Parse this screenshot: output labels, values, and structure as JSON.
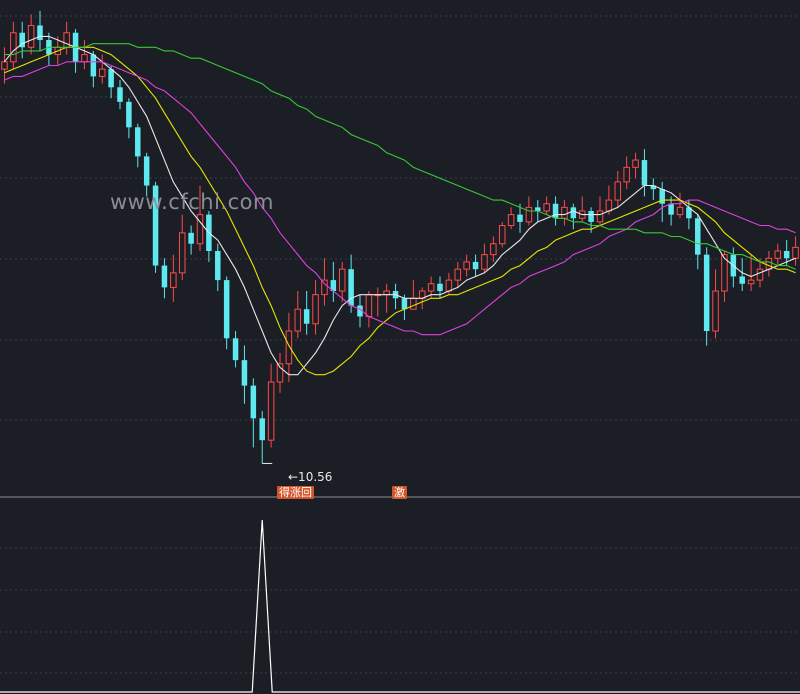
{
  "watermark": "www.cfchi.com",
  "annotations": {
    "low_label": "←10.56",
    "signal_a": "得涨回",
    "signal_b": "激"
  },
  "colors": {
    "background": "#1b1e25",
    "grid": "#3a3d47",
    "up": "#ff4a4a",
    "down": "#5ee8ef",
    "ma_white": "#e8e8e8",
    "ma_yellow": "#e6e600",
    "ma_magenta": "#e040e0",
    "ma_green": "#37c837",
    "indicator": "#ffffff",
    "signal_bg": "#d4542a"
  },
  "chart_data": [
    {
      "type": "candlestick",
      "title": "",
      "xlabel": "",
      "ylabel": "",
      "grid": true,
      "annotations": [
        {
          "text": "←10.56",
          "value": 10.56
        }
      ],
      "candles": [
        [
          21.4,
          21.6,
          22.0,
          21.0
        ],
        [
          21.6,
          22.4,
          22.7,
          21.4
        ],
        [
          22.4,
          22.0,
          22.7,
          21.7
        ],
        [
          22.0,
          22.6,
          22.9,
          21.8
        ],
        [
          22.6,
          22.2,
          23.0,
          21.9
        ],
        [
          22.2,
          21.8,
          22.4,
          21.5
        ],
        [
          21.8,
          22.0,
          22.3,
          21.5
        ],
        [
          22.0,
          22.4,
          22.7,
          21.8
        ],
        [
          22.4,
          21.6,
          22.5,
          21.3
        ],
        [
          21.6,
          21.8,
          22.2,
          21.4
        ],
        [
          21.8,
          21.2,
          21.9,
          20.9
        ],
        [
          21.2,
          21.4,
          21.8,
          21.0
        ],
        [
          21.4,
          20.9,
          21.5,
          20.6
        ],
        [
          20.9,
          20.5,
          21.1,
          20.3
        ],
        [
          20.5,
          19.8,
          20.6,
          19.5
        ],
        [
          19.8,
          19.0,
          19.9,
          18.7
        ],
        [
          19.0,
          18.2,
          19.1,
          17.9
        ],
        [
          18.2,
          16.0,
          18.3,
          15.8
        ],
        [
          16.0,
          15.4,
          16.2,
          15.1
        ],
        [
          15.4,
          15.8,
          16.3,
          15.0
        ],
        [
          15.8,
          16.9,
          17.4,
          15.6
        ],
        [
          16.9,
          16.6,
          17.1,
          16.3
        ],
        [
          16.6,
          17.4,
          18.2,
          16.4
        ],
        [
          17.4,
          16.4,
          17.5,
          16.1
        ],
        [
          16.4,
          15.6,
          16.6,
          15.3
        ],
        [
          15.6,
          14.0,
          15.7,
          13.7
        ],
        [
          14.0,
          13.4,
          14.2,
          13.2
        ],
        [
          13.4,
          12.7,
          13.8,
          12.2
        ],
        [
          12.7,
          11.8,
          12.9,
          11.0
        ],
        [
          11.8,
          11.2,
          12.0,
          10.56
        ],
        [
          11.2,
          12.8,
          13.3,
          11.0
        ],
        [
          12.8,
          13.3,
          13.6,
          12.5
        ],
        [
          13.3,
          14.2,
          14.7,
          12.8
        ],
        [
          14.2,
          14.8,
          15.3,
          14.0
        ],
        [
          14.8,
          14.4,
          15.3,
          14.1
        ],
        [
          14.4,
          15.2,
          15.6,
          14.1
        ],
        [
          15.2,
          15.6,
          16.2,
          14.9
        ],
        [
          15.6,
          15.3,
          16.1,
          15.0
        ],
        [
          15.3,
          15.9,
          16.1,
          15.0
        ],
        [
          15.9,
          14.9,
          16.3,
          14.7
        ],
        [
          14.9,
          14.6,
          15.2,
          14.3
        ],
        [
          14.6,
          15.2,
          15.3,
          14.3
        ],
        [
          15.2,
          15.2,
          15.4,
          14.6
        ],
        [
          15.2,
          15.3,
          15.5,
          14.7
        ],
        [
          15.3,
          15.1,
          15.5,
          14.8
        ],
        [
          15.1,
          14.8,
          15.2,
          14.5
        ],
        [
          14.8,
          15.1,
          15.6,
          14.8
        ],
        [
          15.1,
          15.3,
          15.4,
          14.8
        ],
        [
          15.3,
          15.5,
          15.7,
          15.1
        ],
        [
          15.5,
          15.3,
          15.7,
          15.1
        ],
        [
          15.3,
          15.6,
          15.8,
          15.2
        ],
        [
          15.6,
          15.9,
          16.1,
          15.4
        ],
        [
          15.9,
          16.1,
          16.3,
          15.7
        ],
        [
          16.1,
          15.9,
          16.3,
          15.7
        ],
        [
          15.9,
          16.3,
          16.6,
          15.8
        ],
        [
          16.3,
          16.6,
          16.8,
          16.1
        ],
        [
          16.6,
          17.1,
          17.2,
          16.5
        ],
        [
          17.1,
          17.4,
          17.6,
          17.0
        ],
        [
          17.4,
          17.2,
          17.7,
          16.9
        ],
        [
          17.2,
          17.6,
          17.9,
          17.1
        ],
        [
          17.6,
          17.5,
          17.8,
          17.2
        ],
        [
          17.5,
          17.7,
          17.9,
          17.4
        ],
        [
          17.7,
          17.3,
          17.9,
          17.1
        ],
        [
          17.3,
          17.6,
          17.8,
          17.1
        ],
        [
          17.6,
          17.3,
          17.7,
          17.0
        ],
        [
          17.3,
          17.5,
          17.9,
          17.2
        ],
        [
          17.5,
          17.2,
          17.6,
          16.9
        ],
        [
          17.2,
          17.5,
          17.9,
          17.1
        ],
        [
          17.5,
          17.8,
          18.2,
          17.4
        ],
        [
          17.8,
          18.3,
          18.6,
          17.6
        ],
        [
          18.3,
          18.7,
          19.0,
          18.1
        ],
        [
          18.7,
          18.9,
          19.1,
          18.4
        ],
        [
          18.9,
          18.2,
          19.2,
          17.9
        ],
        [
          18.2,
          18.1,
          18.4,
          17.8
        ],
        [
          18.1,
          17.7,
          18.3,
          17.2
        ],
        [
          17.7,
          17.4,
          17.9,
          17.1
        ],
        [
          17.4,
          17.6,
          18.0,
          17.3
        ],
        [
          17.6,
          17.3,
          17.8,
          17.0
        ],
        [
          17.3,
          16.3,
          17.4,
          15.9
        ],
        [
          16.3,
          14.2,
          16.5,
          13.8
        ],
        [
          14.2,
          15.3,
          15.9,
          14.0
        ],
        [
          15.3,
          16.3,
          16.4,
          15.0
        ],
        [
          16.3,
          15.7,
          16.5,
          15.4
        ],
        [
          15.7,
          15.5,
          16.2,
          15.3
        ],
        [
          15.5,
          15.6,
          16.3,
          15.3
        ],
        [
          15.6,
          15.9,
          16.2,
          15.4
        ],
        [
          15.9,
          16.2,
          16.4,
          15.7
        ],
        [
          16.2,
          16.4,
          16.6,
          16.0
        ],
        [
          16.4,
          16.2,
          16.7,
          16.0
        ],
        [
          16.2,
          16.5,
          16.8,
          16.0
        ]
      ],
      "moving_averages": [
        {
          "color": "#e8e8e8",
          "values": [
            21.6,
            21.9,
            22.1,
            22.2,
            22.3,
            22.3,
            22.2,
            22.1,
            22.0,
            21.9,
            21.8,
            21.6,
            21.4,
            21.2,
            20.9,
            20.5,
            20.1,
            19.5,
            18.9,
            18.3,
            17.9,
            17.5,
            17.2,
            16.9,
            16.7,
            16.3,
            15.9,
            15.4,
            14.8,
            14.2,
            13.6,
            13.2,
            13.0,
            13.0,
            13.3,
            13.6,
            14.0,
            14.5,
            14.9,
            15.1,
            15.2,
            15.2,
            15.2,
            15.2,
            15.2,
            15.1,
            15.1,
            15.1,
            15.2,
            15.2,
            15.3,
            15.4,
            15.6,
            15.7,
            15.8,
            16.0,
            16.3,
            16.5,
            16.7,
            17.0,
            17.2,
            17.3,
            17.4,
            17.4,
            17.5,
            17.4,
            17.4,
            17.4,
            17.5,
            17.6,
            17.8,
            18.0,
            18.2,
            18.2,
            18.1,
            18.0,
            17.8,
            17.6,
            17.4,
            17.0,
            16.6,
            16.2,
            16.0,
            15.8,
            15.7,
            15.8,
            15.9,
            16.0,
            16.1,
            16.2
          ]
        },
        {
          "color": "#e6e600",
          "values": [
            21.3,
            21.4,
            21.5,
            21.6,
            21.7,
            21.8,
            21.9,
            22.0,
            22.0,
            22.0,
            22.0,
            21.9,
            21.8,
            21.6,
            21.4,
            21.2,
            20.9,
            20.6,
            20.2,
            19.8,
            19.4,
            19.0,
            18.7,
            18.3,
            17.9,
            17.5,
            17.0,
            16.5,
            16.0,
            15.4,
            14.9,
            14.3,
            13.8,
            13.4,
            13.1,
            13.0,
            13.0,
            13.1,
            13.3,
            13.5,
            13.8,
            14.0,
            14.3,
            14.5,
            14.7,
            14.8,
            14.9,
            15.0,
            15.1,
            15.1,
            15.2,
            15.2,
            15.3,
            15.4,
            15.5,
            15.6,
            15.7,
            15.9,
            16.0,
            16.2,
            16.4,
            16.5,
            16.7,
            16.8,
            16.9,
            17.0,
            17.0,
            17.1,
            17.2,
            17.3,
            17.4,
            17.5,
            17.6,
            17.7,
            17.8,
            17.8,
            17.8,
            17.7,
            17.6,
            17.4,
            17.2,
            16.9,
            16.7,
            16.5,
            16.3,
            16.1,
            16.0,
            15.9,
            15.9,
            15.8
          ]
        },
        {
          "color": "#e040e0",
          "values": [
            21.1,
            21.2,
            21.2,
            21.3,
            21.4,
            21.5,
            21.5,
            21.6,
            21.6,
            21.6,
            21.6,
            21.6,
            21.5,
            21.4,
            21.3,
            21.2,
            21.1,
            20.9,
            20.8,
            20.6,
            20.4,
            20.2,
            19.9,
            19.6,
            19.3,
            19.0,
            18.7,
            18.3,
            18.0,
            17.6,
            17.3,
            16.9,
            16.6,
            16.3,
            16.0,
            15.8,
            15.5,
            15.3,
            15.1,
            14.9,
            14.8,
            14.6,
            14.5,
            14.4,
            14.3,
            14.2,
            14.2,
            14.1,
            14.1,
            14.1,
            14.2,
            14.3,
            14.4,
            14.6,
            14.8,
            15.0,
            15.2,
            15.4,
            15.5,
            15.7,
            15.8,
            15.9,
            16.0,
            16.1,
            16.3,
            16.4,
            16.5,
            16.6,
            16.8,
            16.9,
            17.0,
            17.2,
            17.3,
            17.4,
            17.6,
            17.7,
            17.7,
            17.8,
            17.8,
            17.7,
            17.6,
            17.5,
            17.4,
            17.3,
            17.2,
            17.1,
            17.1,
            17.0,
            17.0,
            16.9
          ]
        },
        {
          "color": "#37c837",
          "values": [
            21.8,
            21.8,
            21.9,
            21.9,
            21.9,
            22.0,
            22.0,
            22.0,
            22.0,
            22.0,
            22.1,
            22.1,
            22.1,
            22.1,
            22.1,
            22.0,
            22.0,
            22.0,
            21.9,
            21.9,
            21.8,
            21.7,
            21.7,
            21.6,
            21.5,
            21.4,
            21.3,
            21.2,
            21.1,
            21.0,
            20.8,
            20.7,
            20.6,
            20.4,
            20.3,
            20.1,
            20.0,
            19.9,
            19.8,
            19.6,
            19.5,
            19.4,
            19.3,
            19.1,
            19.0,
            18.9,
            18.7,
            18.6,
            18.5,
            18.4,
            18.3,
            18.2,
            18.1,
            18.0,
            17.9,
            17.8,
            17.8,
            17.7,
            17.6,
            17.5,
            17.5,
            17.4,
            17.3,
            17.3,
            17.2,
            17.2,
            17.1,
            17.1,
            17.0,
            17.0,
            17.0,
            17.0,
            16.9,
            16.9,
            16.9,
            16.8,
            16.8,
            16.7,
            16.6,
            16.6,
            16.5,
            16.4,
            16.3,
            16.3,
            16.2,
            16.1,
            16.1,
            16.0,
            16.0,
            15.9
          ]
        }
      ]
    },
    {
      "type": "line",
      "title": "",
      "xlabel": "",
      "ylabel": "",
      "grid": true,
      "series": [
        {
          "color": "#ffffff",
          "spike_index": 29,
          "spike_value": 1,
          "baseline": 0
        }
      ]
    }
  ]
}
